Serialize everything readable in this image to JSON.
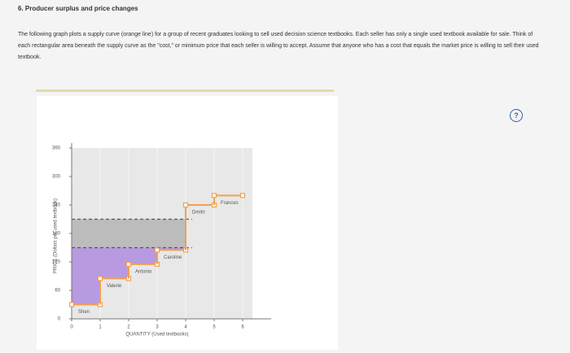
{
  "header": {
    "title": "6. Producer surplus and price changes"
  },
  "instructions": "The following graph plots a supply curve (orange line) for a group of recent graduates looking to sell used decision science textbooks. Each seller has only a single used textbook available for sale. Think of each rectangular area beneath the supply curve as the \"cost,\" or minimum price that each seller is willing to accept. Assume that anyone who has a cost that equals the market price is willing to sell their used textbook.",
  "help": "?",
  "chart_data": {
    "type": "supply-step",
    "x_label": "QUANTITY (Used textbooks)",
    "y_label": "PRICE (Dollars per used textbook)",
    "categories": [
      "Shen",
      "Valerie",
      "Antonio",
      "Caroline",
      "Dmitri",
      "Frances"
    ],
    "values": [
      30,
      85,
      115,
      145,
      240,
      260
    ],
    "color": "#f0a050",
    "surplus_colors": [
      "#b89ae0",
      "#bcbcbc"
    ],
    "price_levels": [
      150,
      210
    ],
    "xlim": [
      0,
      7
    ],
    "xticks": [
      0,
      1,
      2,
      3,
      4,
      5,
      6
    ],
    "ylim": [
      0,
      360
    ],
    "yticks": [
      0,
      60,
      120,
      180,
      240,
      300,
      360
    ]
  }
}
